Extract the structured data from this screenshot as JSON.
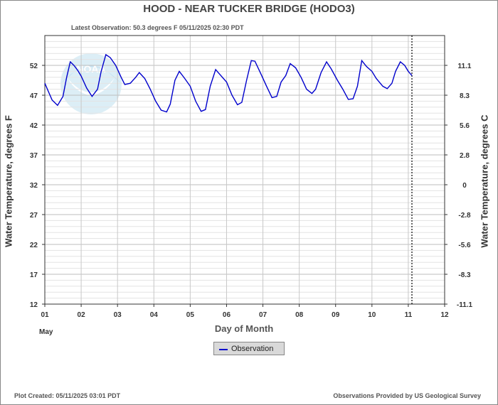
{
  "title": "HOOD - NEAR TUCKER BRIDGE  (HODO3)",
  "subtitle": "Latest Observation: 50.3 degrees F 05/11/2025 02:30 PDT",
  "footer": {
    "plot_created": "Plot Created: 05/11/2025 03:01 PDT",
    "provider": "Observations Provided by US Geological Survey"
  },
  "chart_data": {
    "type": "line",
    "xlabel": "Day of Month",
    "month_label": "May",
    "ylabel_left": "Water Temperature, degrees F",
    "ylabel_right": "Water Temperature, degrees C",
    "xlim": [
      1,
      12
    ],
    "ylim": [
      12,
      57
    ],
    "x_tick_labels": [
      "01",
      "02",
      "03",
      "04",
      "05",
      "06",
      "07",
      "08",
      "09",
      "10",
      "11",
      "12"
    ],
    "y_ticks_f": [
      12,
      17,
      22,
      27,
      32,
      37,
      42,
      47,
      52
    ],
    "y_ticks_c": [
      "-11.1",
      "-8.3",
      "-5.6",
      "-2.8",
      "0",
      "2.8",
      "5.6",
      "8.3",
      "11.1"
    ],
    "grid": true,
    "latest_observation_marker_x": 11.1,
    "legend": {
      "placement": "bottom-center",
      "entries": [
        "Observation"
      ]
    },
    "series": [
      {
        "name": "Observation",
        "color": "#0000cc",
        "points": [
          [
            1.0,
            49.0
          ],
          [
            1.1,
            47.6
          ],
          [
            1.2,
            46.2
          ],
          [
            1.35,
            45.3
          ],
          [
            1.5,
            46.8
          ],
          [
            1.6,
            50.0
          ],
          [
            1.7,
            52.6
          ],
          [
            1.8,
            52.0
          ],
          [
            1.9,
            51.2
          ],
          [
            2.0,
            50.2
          ],
          [
            2.15,
            48.2
          ],
          [
            2.3,
            46.8
          ],
          [
            2.45,
            48.0
          ],
          [
            2.55,
            51.0
          ],
          [
            2.68,
            53.8
          ],
          [
            2.8,
            53.3
          ],
          [
            2.95,
            52.0
          ],
          [
            3.1,
            50.0
          ],
          [
            3.2,
            48.8
          ],
          [
            3.35,
            49.0
          ],
          [
            3.5,
            50.0
          ],
          [
            3.6,
            50.8
          ],
          [
            3.75,
            49.8
          ],
          [
            3.9,
            48.0
          ],
          [
            4.05,
            46.0
          ],
          [
            4.2,
            44.5
          ],
          [
            4.35,
            44.2
          ],
          [
            4.45,
            45.5
          ],
          [
            4.58,
            49.5
          ],
          [
            4.7,
            51.0
          ],
          [
            4.85,
            49.8
          ],
          [
            5.0,
            48.5
          ],
          [
            5.15,
            46.0
          ],
          [
            5.3,
            44.3
          ],
          [
            5.42,
            44.6
          ],
          [
            5.55,
            48.5
          ],
          [
            5.7,
            51.3
          ],
          [
            5.8,
            50.6
          ],
          [
            6.0,
            49.2
          ],
          [
            6.15,
            47.0
          ],
          [
            6.3,
            45.4
          ],
          [
            6.42,
            45.8
          ],
          [
            6.55,
            49.5
          ],
          [
            6.68,
            52.8
          ],
          [
            6.78,
            52.7
          ],
          [
            6.95,
            50.5
          ],
          [
            7.1,
            48.5
          ],
          [
            7.25,
            46.6
          ],
          [
            7.38,
            46.8
          ],
          [
            7.5,
            49.2
          ],
          [
            7.63,
            50.3
          ],
          [
            7.75,
            52.3
          ],
          [
            7.9,
            51.6
          ],
          [
            8.05,
            50.0
          ],
          [
            8.2,
            48.0
          ],
          [
            8.35,
            47.3
          ],
          [
            8.45,
            48.0
          ],
          [
            8.6,
            50.8
          ],
          [
            8.75,
            52.6
          ],
          [
            8.88,
            51.4
          ],
          [
            9.05,
            49.5
          ],
          [
            9.2,
            48.0
          ],
          [
            9.35,
            46.3
          ],
          [
            9.48,
            46.4
          ],
          [
            9.6,
            48.5
          ],
          [
            9.72,
            52.8
          ],
          [
            9.85,
            51.8
          ],
          [
            10.0,
            51.0
          ],
          [
            10.12,
            49.8
          ],
          [
            10.3,
            48.5
          ],
          [
            10.42,
            48.1
          ],
          [
            10.55,
            49.0
          ],
          [
            10.65,
            51.0
          ],
          [
            10.78,
            52.6
          ],
          [
            10.9,
            52.0
          ],
          [
            11.0,
            51.0
          ],
          [
            11.1,
            50.3
          ]
        ]
      }
    ]
  }
}
